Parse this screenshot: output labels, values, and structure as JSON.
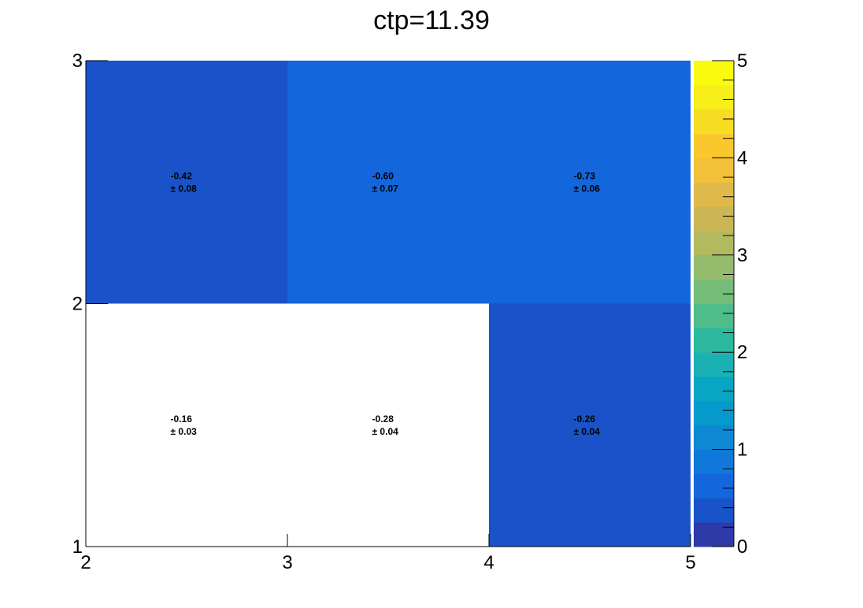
{
  "chart_data": {
    "type": "heatmap",
    "title": "ctp=11.39",
    "x_edges": [
      2,
      3,
      4,
      5
    ],
    "y_edges": [
      1,
      2,
      3
    ],
    "x_tick_labels": [
      "2",
      "3",
      "4",
      "5"
    ],
    "y_tick_labels": [
      "1",
      "2",
      "3"
    ],
    "xlim": [
      2,
      5
    ],
    "ylim": [
      1,
      3
    ],
    "zlim": [
      0,
      5
    ],
    "z_tick_labels": [
      "0",
      "1",
      "2",
      "3",
      "4",
      "5"
    ],
    "cells": [
      {
        "x": 2,
        "y": 2,
        "value": "-0.42",
        "error": "± 0.08",
        "color": "#1a53c9",
        "filled": true
      },
      {
        "x": 3,
        "y": 2,
        "value": "-0.60",
        "error": "± 0.07",
        "color": "#1366dc",
        "filled": true
      },
      {
        "x": 4,
        "y": 2,
        "value": "-0.73",
        "error": "± 0.06",
        "color": "#1366dc",
        "filled": true
      },
      {
        "x": 2,
        "y": 1,
        "value": "-0.16",
        "error": "± 0.03",
        "color": "#ffffff",
        "filled": false
      },
      {
        "x": 3,
        "y": 1,
        "value": "-0.28",
        "error": "± 0.04",
        "color": "#ffffff",
        "filled": false
      },
      {
        "x": 4,
        "y": 1,
        "value": "-0.26",
        "error": "± 0.04",
        "color": "#1a53c9",
        "filled": true
      }
    ],
    "palette": [
      "#2d3aa8",
      "#1a53c9",
      "#1366dc",
      "#1078d8",
      "#0e88d2",
      "#0599cc",
      "#06a6c4",
      "#1ab1b4",
      "#2cb9a0",
      "#50bc8a",
      "#74bc78",
      "#95bb6c",
      "#b2ba60",
      "#cbb656",
      "#e0b94b",
      "#f3c03a",
      "#fac82c",
      "#f6dc22",
      "#f7ee1a",
      "#f9fb0e"
    ]
  }
}
